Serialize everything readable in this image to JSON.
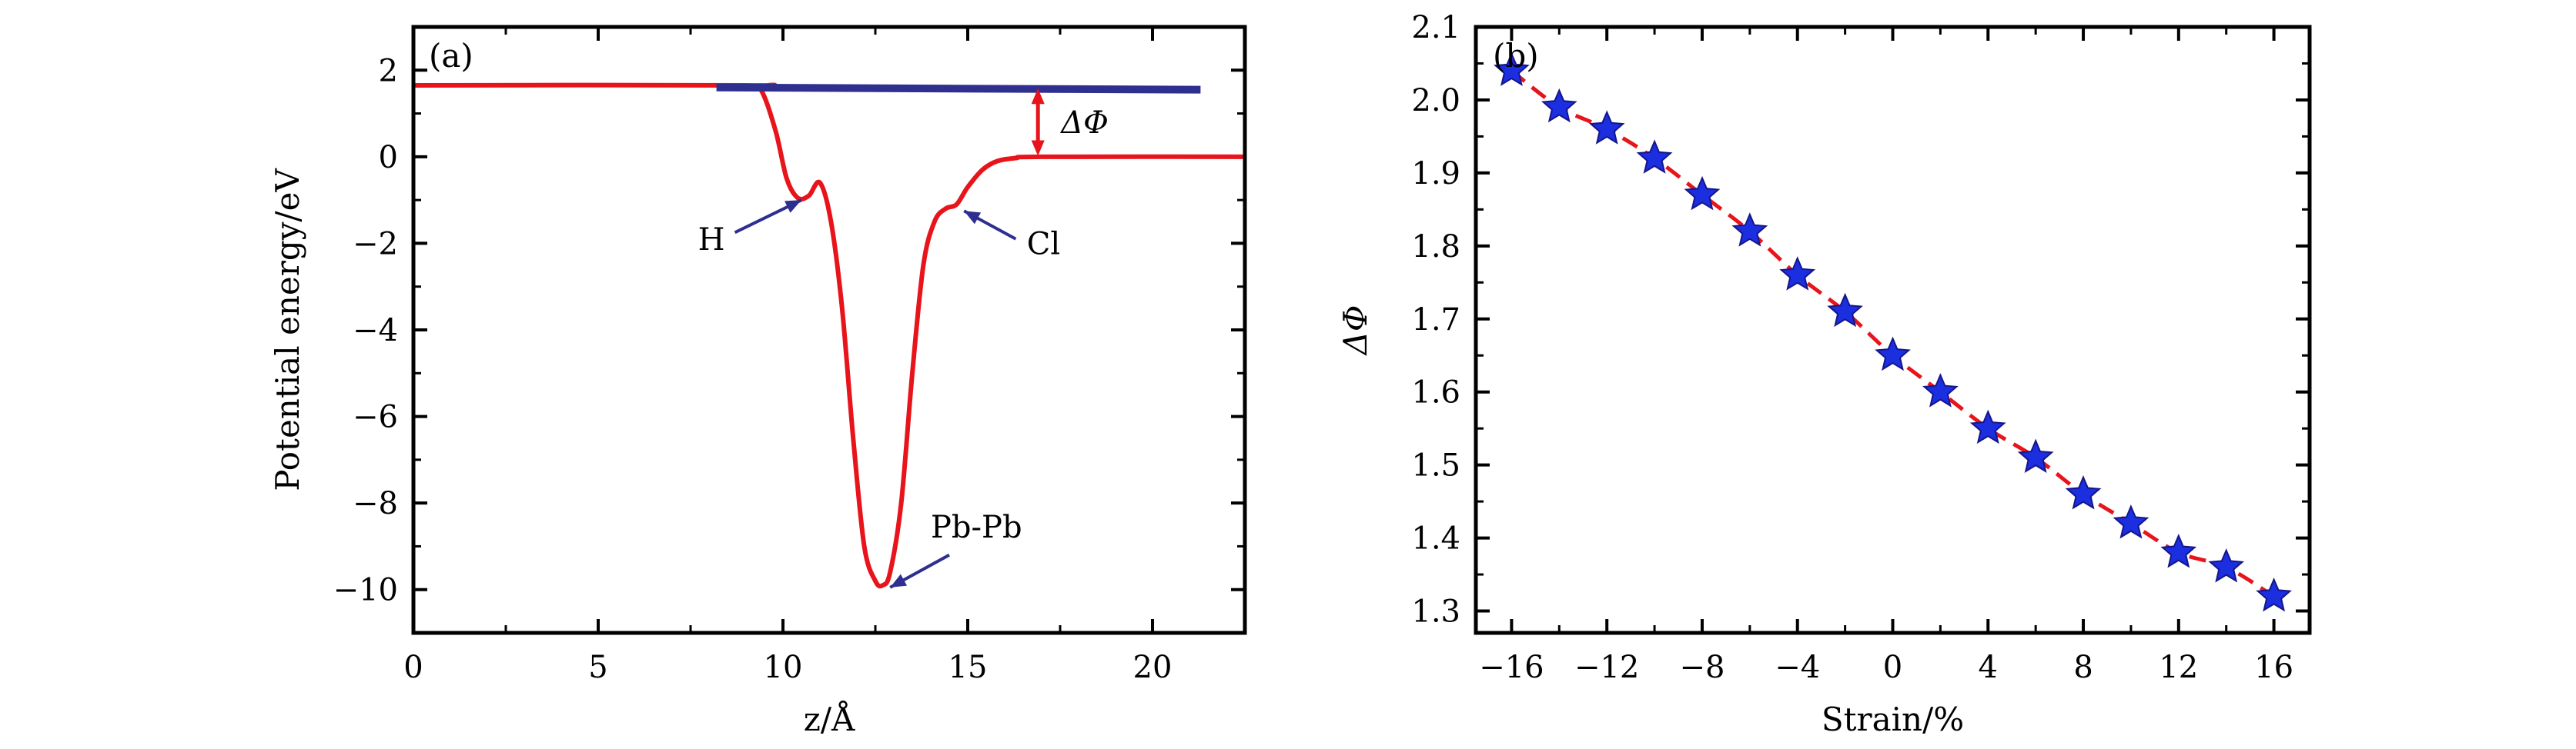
{
  "colors": {
    "red_curve": "#e8141b",
    "blue_line": "#2e2f8f",
    "marker_fill": "#1b2ee0",
    "marker_edge": "#15158a",
    "frame": "#000000"
  },
  "chart_data": [
    {
      "type": "line",
      "panel_label": "(a)",
      "xlabel": "z/Å",
      "ylabel": "Potential energy/eV",
      "xlim": [
        0,
        22.5
      ],
      "ylim": [
        -11,
        3
      ],
      "xticks": [
        0,
        5,
        10,
        15,
        20
      ],
      "yticks": [
        2,
        0,
        -2,
        -4,
        -6,
        -8,
        -10
      ],
      "ytick_labels": [
        "2",
        "0",
        "−2",
        "−4",
        "−6",
        "−8",
        "−10"
      ],
      "series": [
        {
          "color": "#e8141b",
          "x": [
            0,
            9.0,
            9.4,
            9.8,
            10.1,
            10.4,
            10.7,
            11.0,
            11.3,
            11.6,
            11.9,
            12.2,
            12.5,
            12.7,
            12.9,
            13.2,
            13.5,
            13.8,
            14.1,
            14.4,
            14.7,
            15.0,
            15.4,
            15.8,
            16.3,
            17.0,
            22.5
          ],
          "y": [
            1.65,
            1.65,
            1.55,
            0.6,
            -0.5,
            -0.95,
            -0.9,
            -0.6,
            -1.5,
            -3.5,
            -6.5,
            -9.0,
            -9.8,
            -9.9,
            -9.6,
            -8.0,
            -5.0,
            -2.5,
            -1.5,
            -1.2,
            -1.1,
            -0.7,
            -0.3,
            -0.1,
            -0.03,
            0.0,
            0.0
          ]
        },
        {
          "color": "#2e2f8f",
          "x": [
            8.2,
            21.3
          ],
          "y": [
            1.6,
            1.55
          ]
        }
      ],
      "annotations": {
        "delta_phi": "ΔΦ",
        "h": "H",
        "cl": "Cl",
        "pbpb": "Pb-Pb"
      }
    },
    {
      "type": "line",
      "panel_label": "(b)",
      "xlabel": "Strain/%",
      "ylabel": "ΔΦ",
      "xlim": [
        -17.5,
        17.5
      ],
      "ylim": [
        1.27,
        2.1
      ],
      "xticks": [
        -16,
        -12,
        -8,
        -4,
        0,
        4,
        8,
        12,
        16
      ],
      "xtick_labels": [
        "−16",
        "−12",
        "−8",
        "−4",
        "0",
        "4",
        "8",
        "12",
        "16"
      ],
      "yticks": [
        1.3,
        1.4,
        1.5,
        1.6,
        1.7,
        1.8,
        1.9,
        2.0,
        2.1
      ],
      "ytick_labels": [
        "1.3",
        "1.4",
        "1.5",
        "1.6",
        "1.7",
        "1.8",
        "1.9",
        "2.0",
        "2.1"
      ],
      "x": [
        -16,
        -14,
        -12,
        -10,
        -8,
        -6,
        -4,
        -2,
        0,
        2,
        4,
        6,
        8,
        10,
        12,
        14,
        16
      ],
      "y": [
        2.04,
        1.99,
        1.96,
        1.92,
        1.87,
        1.82,
        1.76,
        1.71,
        1.65,
        1.6,
        1.55,
        1.51,
        1.46,
        1.42,
        1.38,
        1.36,
        1.32
      ]
    }
  ]
}
